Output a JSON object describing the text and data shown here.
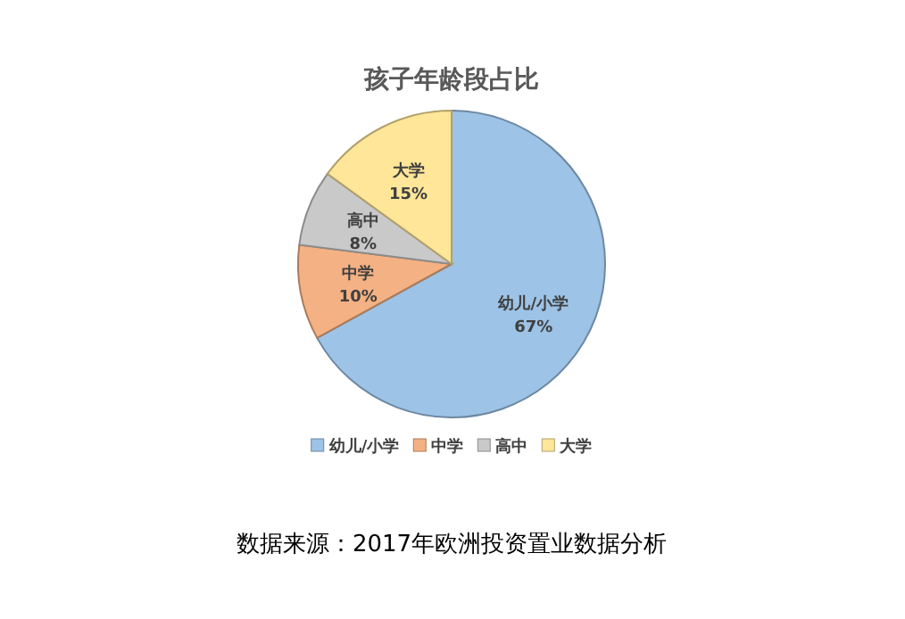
{
  "chart_data": {
    "type": "pie",
    "title": "孩子年龄段占比",
    "categories": [
      "幼儿/小学",
      "中学",
      "高中",
      "大学"
    ],
    "values": [
      67,
      10,
      8,
      15
    ],
    "colors": [
      "#9dc3e6",
      "#f4b183",
      "#c9c9c9",
      "#ffe699"
    ],
    "value_labels": [
      "67%",
      "10%",
      "8%",
      "15%"
    ],
    "legend": "bottom",
    "annotations": [
      "数据来源：2017年欧洲投资置业数据分析"
    ]
  }
}
